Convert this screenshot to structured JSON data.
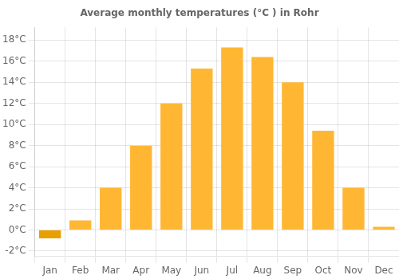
{
  "chart_data": {
    "type": "bar",
    "title": "Average monthly temperatures (°C ) in Rohr",
    "categories": [
      "Jan",
      "Feb",
      "Mar",
      "Apr",
      "May",
      "Jun",
      "Jul",
      "Aug",
      "Sep",
      "Oct",
      "Nov",
      "Dec"
    ],
    "values": [
      -0.8,
      0.9,
      4.0,
      8.0,
      12.0,
      15.3,
      17.3,
      16.4,
      14.0,
      9.4,
      4.0,
      0.3
    ],
    "colors": [
      "#E8A000",
      "#FFB733",
      "#FFB733",
      "#FFB733",
      "#FFB733",
      "#FFB733",
      "#FFB733",
      "#FFB733",
      "#FFB733",
      "#FFB733",
      "#FFB733",
      "#FFB733"
    ],
    "ylim": [
      -2.5,
      19.2
    ],
    "yticks": [
      {
        "value": -2,
        "label": "-2°C"
      },
      {
        "value": 0,
        "label": "0°C"
      },
      {
        "value": 2,
        "label": "2°C"
      },
      {
        "value": 4,
        "label": "4°C"
      },
      {
        "value": 6,
        "label": "6°C"
      },
      {
        "value": 8,
        "label": "8°C"
      },
      {
        "value": 10,
        "label": "10°C"
      },
      {
        "value": 12,
        "label": "12°C"
      },
      {
        "value": 14,
        "label": "14°C"
      },
      {
        "value": 16,
        "label": "16°C"
      },
      {
        "value": 18,
        "label": "18°C"
      }
    ],
    "grid": true
  }
}
